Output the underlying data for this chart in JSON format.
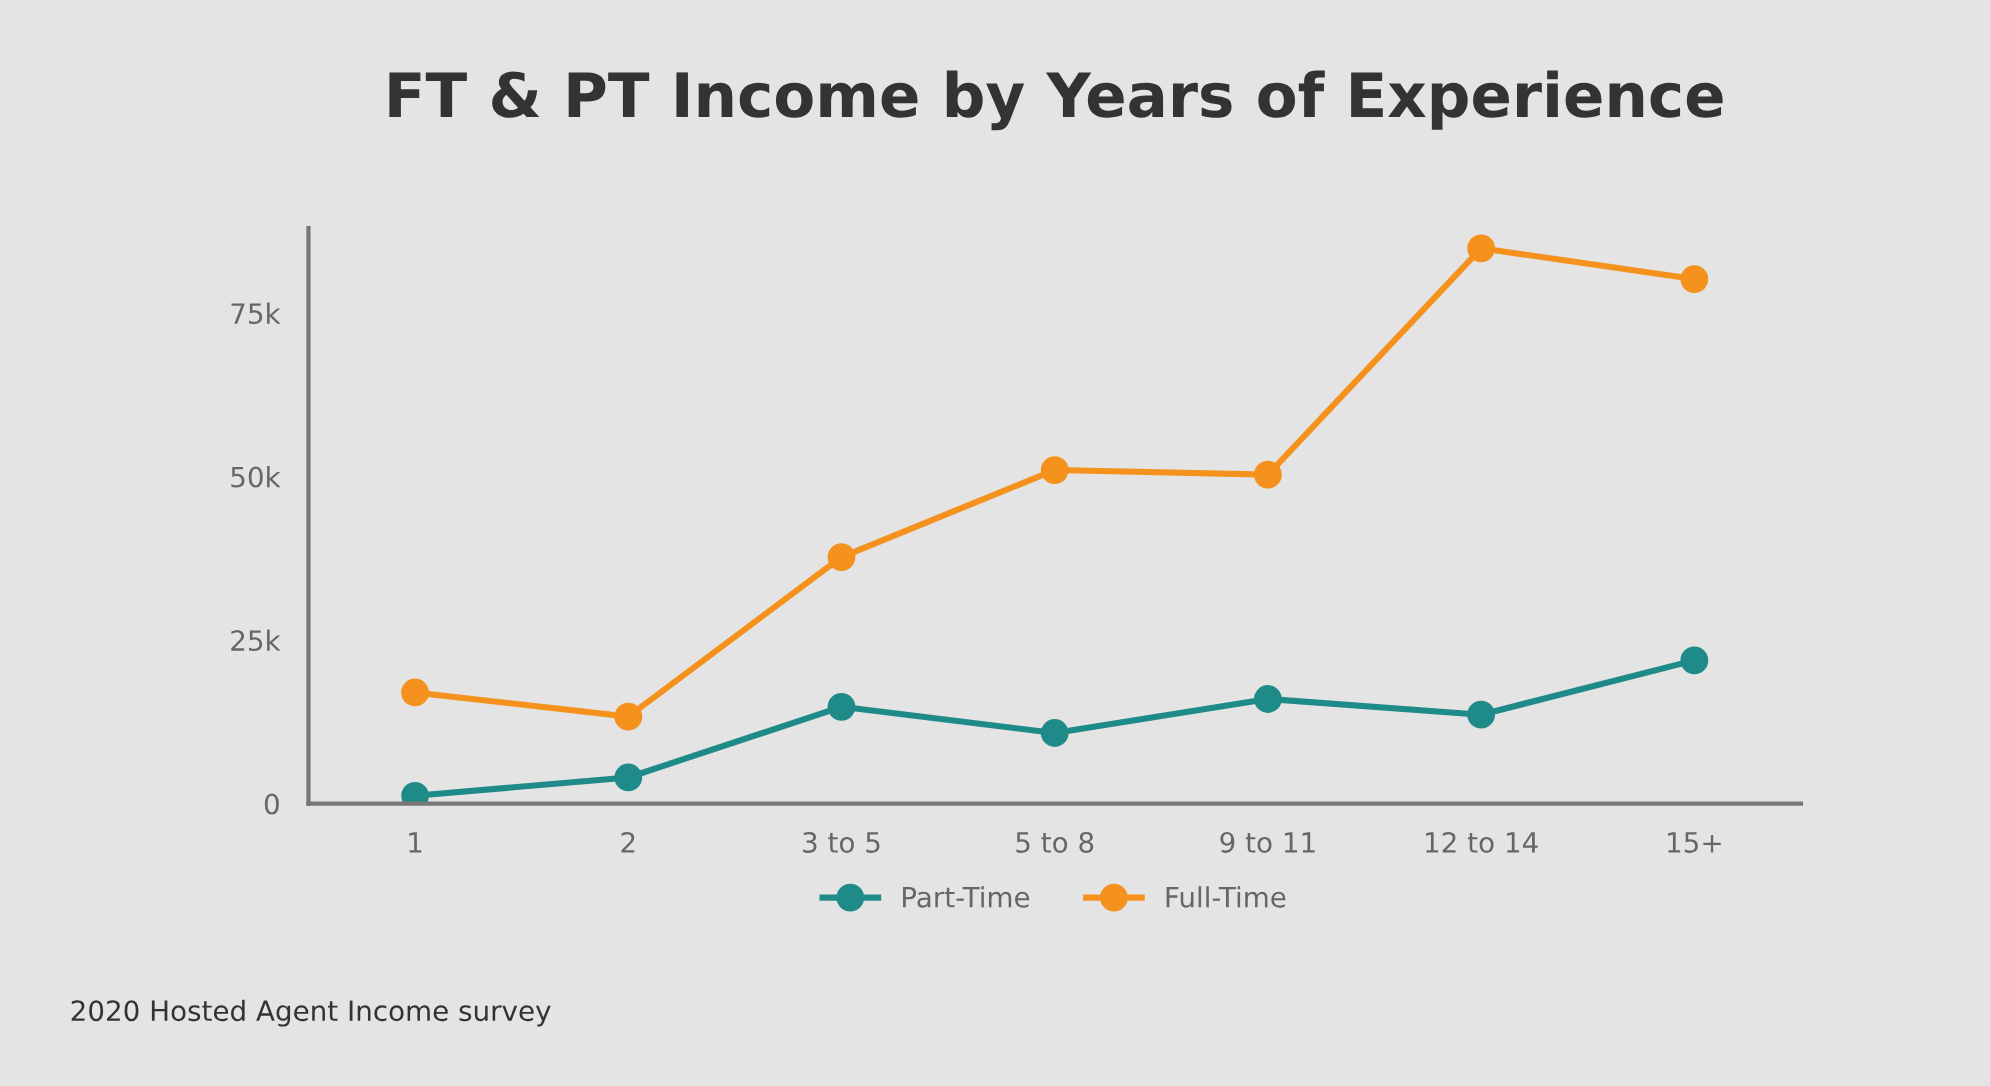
{
  "chart_data": {
    "type": "line",
    "title": "FT & PT Income by Years of Experience",
    "categories": [
      "1",
      "2",
      "3 to 5",
      "5 to 8",
      "9 to 11",
      "12 to 14",
      "15+"
    ],
    "series": [
      {
        "name": "Part-Time",
        "color": "#1f8b89",
        "values": [
          1200,
          4000,
          14800,
          10800,
          16000,
          13600,
          21900
        ]
      },
      {
        "name": "Full-Time",
        "color": "#f5921e",
        "values": [
          17000,
          13300,
          37700,
          51000,
          50300,
          84900,
          80200
        ]
      }
    ],
    "ylim": [
      0,
      88000
    ],
    "yticks": [
      {
        "value": 0,
        "label": "0"
      },
      {
        "value": 25000,
        "label": "25k"
      },
      {
        "value": 50000,
        "label": "50k"
      },
      {
        "value": 75000,
        "label": "75k"
      }
    ],
    "grid": false,
    "legend": "bottom",
    "marker": "circle",
    "line_style": "solid",
    "annotations": [
      "2020 Hosted Agent Income survey"
    ]
  }
}
